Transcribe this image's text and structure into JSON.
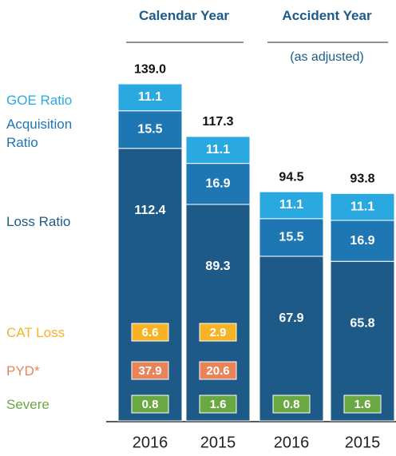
{
  "chart_data": {
    "type": "stacked_bar",
    "categories": [
      "2016",
      "2015",
      "2016",
      "2015"
    ],
    "groups": [
      {
        "label": "Calendar Year"
      },
      {
        "label": "Accident Year",
        "note": "(as adjusted)"
      }
    ],
    "series": [
      {
        "name": "Loss Ratio",
        "color": "#1d5a88",
        "values": [
          112.4,
          89.3,
          67.9,
          65.8
        ]
      },
      {
        "name": "Acquisition Ratio",
        "color": "#1e76b3",
        "values": [
          15.5,
          16.9,
          15.5,
          16.9
        ]
      },
      {
        "name": "GOE Ratio",
        "color": "#2aa8e0",
        "values": [
          11.1,
          11.1,
          11.1,
          11.1
        ]
      }
    ],
    "totals": [
      139,
      117.3,
      94.5,
      93.8
    ],
    "total_labels": [
      "139.0",
      "117.3",
      "94.5",
      "93.8"
    ],
    "components": [
      {
        "name": "CAT Loss",
        "color": "#f6b326",
        "values": [
          6.6,
          2.9,
          null,
          null
        ]
      },
      {
        "name": "PYD*",
        "color": "#e9845a",
        "values": [
          37.9,
          20.6,
          null,
          null
        ]
      },
      {
        "name": "Severe",
        "color": "#6aa843",
        "values": [
          0.8,
          1.6,
          0.8,
          1.6
        ]
      }
    ],
    "ylim": [
      0,
      140
    ]
  }
}
